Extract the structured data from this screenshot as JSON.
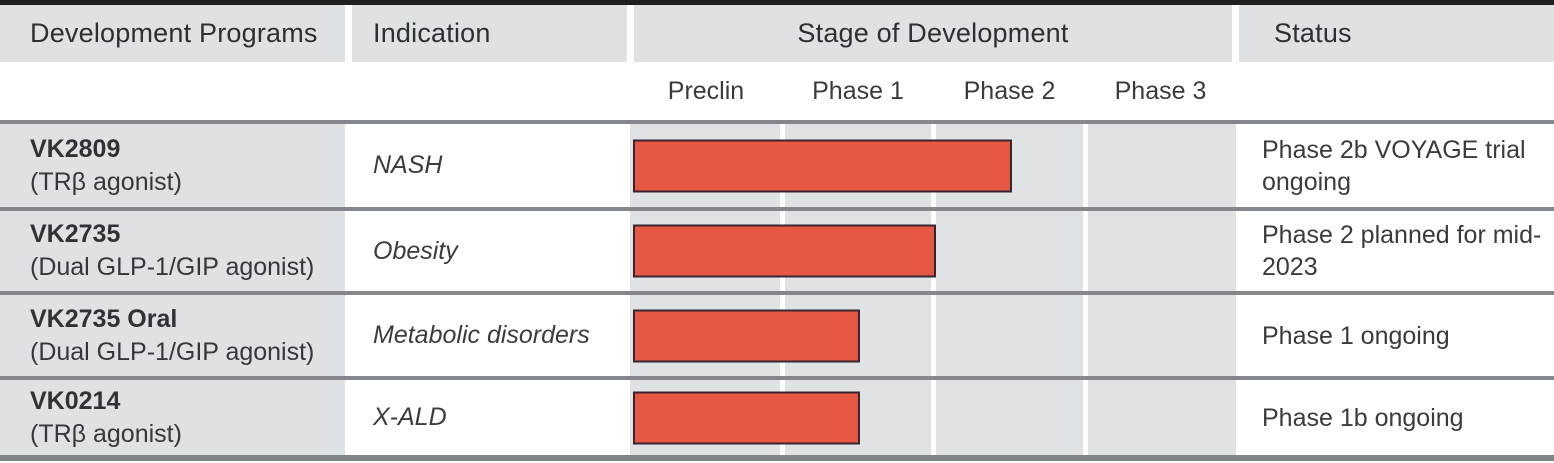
{
  "table": {
    "columns": {
      "programs": "Development Programs",
      "indication": "Indication",
      "stage": "Stage of Development",
      "status": "Status"
    },
    "phases": [
      "Preclin",
      "Phase 1",
      "Phase 2",
      "Phase 3"
    ],
    "rows": [
      {
        "program": "VK2809",
        "detail": "(TRβ agonist)",
        "indication": "NASH",
        "status": "Phase 2b VOYAGE trial ongoing"
      },
      {
        "program": "VK2735",
        "detail": "(Dual GLP-1/GIP agonist)",
        "indication": "Obesity",
        "status": "Phase 2 planned for mid-2023"
      },
      {
        "program": "VK2735 Oral",
        "detail": "(Dual GLP-1/GIP agonist)",
        "indication": "Metabolic disorders",
        "status": "Phase 1 ongoing"
      },
      {
        "program": "VK0214",
        "detail": "(TRβ agonist)",
        "indication": "X-ALD",
        "status": "Phase 1b ongoing"
      }
    ]
  },
  "chart_data": {
    "type": "bar",
    "title": "Stage of Development",
    "categories": [
      "VK2809 (NASH)",
      "VK2735 (Obesity)",
      "VK2735 Oral (Metabolic disorders)",
      "VK0214 (X-ALD)"
    ],
    "values": [
      2.5,
      2.0,
      1.5,
      1.5
    ],
    "x_ticks": [
      "Preclin",
      "Phase 1",
      "Phase 2",
      "Phase 3"
    ],
    "xlim": [
      0,
      4
    ],
    "units": "development phases reached (0 = start of Preclin, 1 phase per column)",
    "bar_color": "#e65843",
    "bar_border_color": "#392530",
    "legend": "none",
    "grid": "vertical phase-column separators"
  },
  "colors": {
    "header_bg": "#dee2e5",
    "stage_bg": "#e0e3e6",
    "top_rule": "#1e2124",
    "bottom_rule": "#7f8487",
    "row_divider": "#84888c",
    "text": "#2f3235"
  }
}
